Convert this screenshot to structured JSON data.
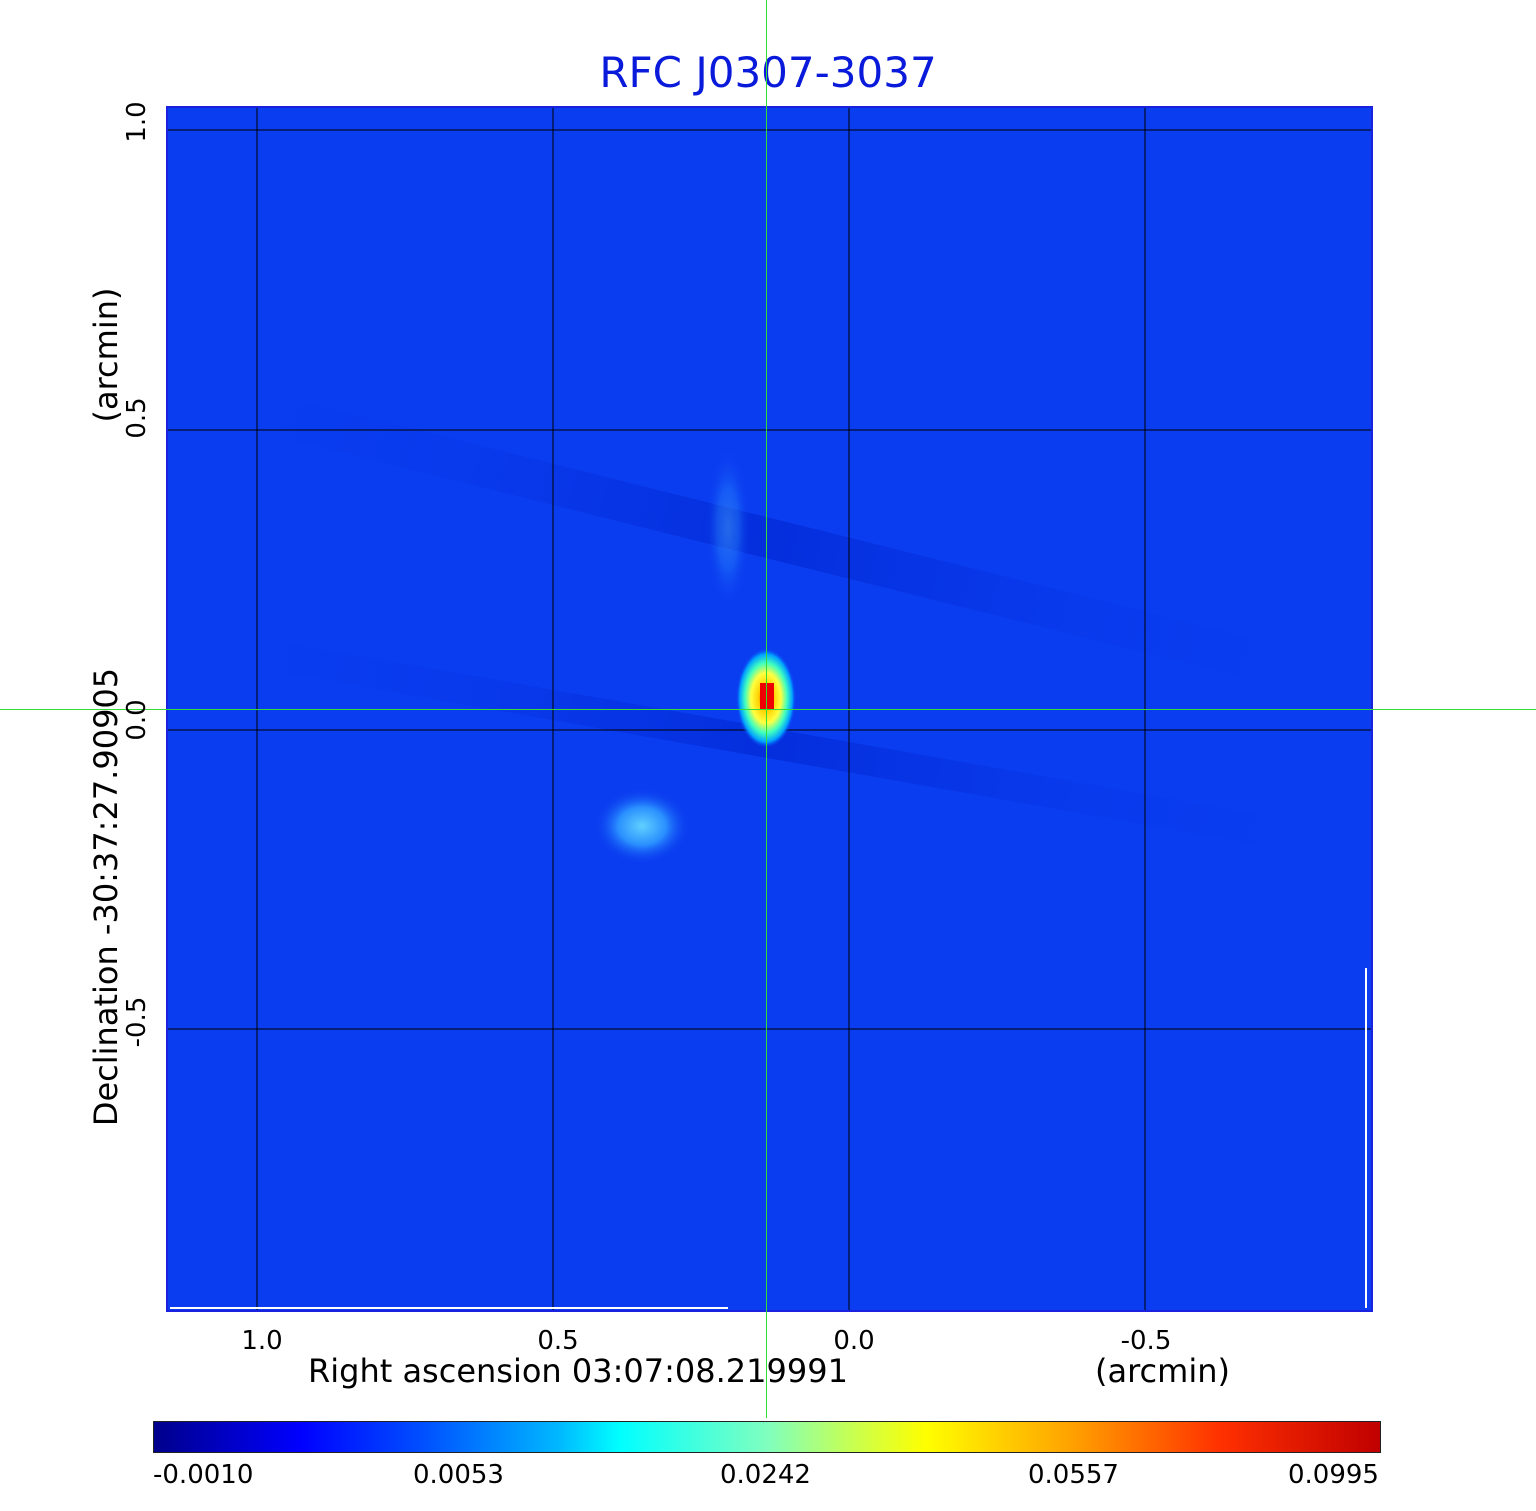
{
  "title": "RFC J0307-3037",
  "x_axis": {
    "label": "Right ascension  03:07:08.219991",
    "unit": "(arcmin)",
    "ticks": [
      "1.0",
      "0.5",
      "0.0",
      "-0.5"
    ]
  },
  "y_axis": {
    "label": "Declination  -30:37:27.90905",
    "unit": "(arcmin)",
    "ticks": [
      "1.0",
      "0.5",
      "0.0",
      "-0.5"
    ]
  },
  "colorbar": {
    "ticks": [
      "-0.0010",
      "0.0053",
      "0.0242",
      "0.0557",
      "0.0995"
    ],
    "colormap": "jet"
  },
  "colors": {
    "title": "#0a1adb",
    "background_field": "#0a3df0",
    "crosshair": "#33dd33",
    "grid": "#000000"
  }
}
